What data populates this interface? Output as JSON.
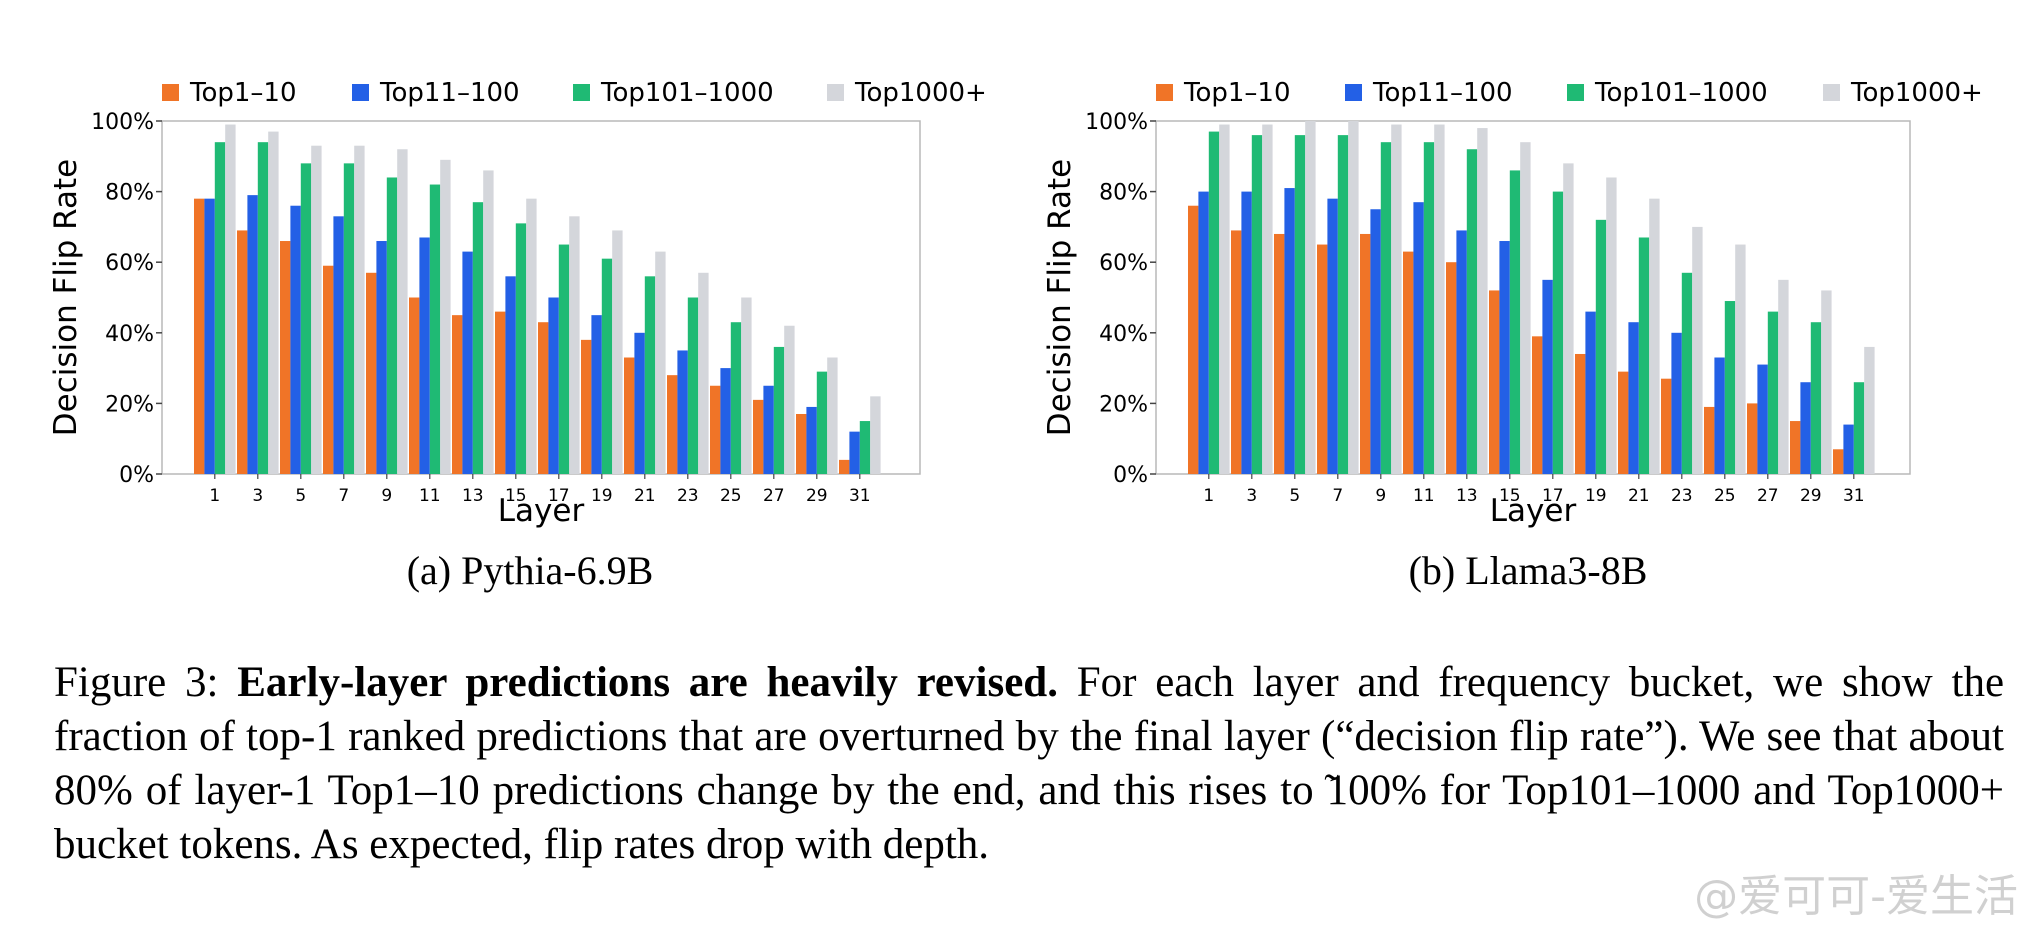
{
  "colors": {
    "top1_10": "#f07427",
    "top11_100": "#2360e6",
    "top101_1000": "#1fba74",
    "top1000plus": "#d4d6db"
  },
  "chart_data": [
    {
      "type": "bar",
      "subcaption": "(a) Pythia-6.9B",
      "xlabel": "Layer",
      "ylabel": "Decision Flip Rate",
      "ylim": [
        0,
        100
      ],
      "yticks": [
        "0%",
        "20%",
        "40%",
        "60%",
        "80%",
        "100%"
      ],
      "categories": [
        "1",
        "3",
        "5",
        "7",
        "9",
        "11",
        "13",
        "15",
        "17",
        "19",
        "21",
        "23",
        "25",
        "27",
        "29",
        "31"
      ],
      "legend": "top",
      "series": [
        {
          "name": "Top1–10",
          "values": [
            78,
            69,
            66,
            59,
            57,
            50,
            45,
            46,
            43,
            38,
            33,
            28,
            25,
            21,
            17,
            4
          ]
        },
        {
          "name": "Top11–100",
          "values": [
            78,
            79,
            76,
            73,
            66,
            67,
            63,
            56,
            50,
            45,
            40,
            35,
            30,
            25,
            19,
            12
          ]
        },
        {
          "name": "Top101–1000",
          "values": [
            94,
            94,
            88,
            88,
            84,
            82,
            77,
            71,
            65,
            61,
            56,
            50,
            43,
            36,
            29,
            15
          ]
        },
        {
          "name": "Top1000+",
          "values": [
            99,
            97,
            93,
            93,
            92,
            89,
            86,
            78,
            73,
            69,
            63,
            57,
            50,
            42,
            33,
            22
          ]
        }
      ]
    },
    {
      "type": "bar",
      "subcaption": "(b) Llama3-8B",
      "xlabel": "Layer",
      "ylabel": "Decision Flip Rate",
      "ylim": [
        0,
        100
      ],
      "yticks": [
        "0%",
        "20%",
        "40%",
        "60%",
        "80%",
        "100%"
      ],
      "categories": [
        "1",
        "3",
        "5",
        "7",
        "9",
        "11",
        "13",
        "15",
        "17",
        "19",
        "21",
        "23",
        "25",
        "27",
        "29",
        "31"
      ],
      "legend": "top",
      "series": [
        {
          "name": "Top1–10",
          "values": [
            76,
            69,
            68,
            65,
            68,
            63,
            60,
            52,
            39,
            34,
            29,
            27,
            19,
            20,
            15,
            7
          ]
        },
        {
          "name": "Top11–100",
          "values": [
            80,
            80,
            81,
            78,
            75,
            77,
            69,
            66,
            55,
            46,
            43,
            40,
            33,
            31,
            26,
            14
          ]
        },
        {
          "name": "Top101–1000",
          "values": [
            97,
            96,
            96,
            96,
            94,
            94,
            92,
            86,
            80,
            72,
            67,
            57,
            49,
            46,
            43,
            26
          ]
        },
        {
          "name": "Top1000+",
          "values": [
            99,
            99,
            100,
            100,
            99,
            99,
            98,
            94,
            88,
            84,
            78,
            70,
            65,
            55,
            52,
            36
          ]
        }
      ]
    }
  ],
  "caption": {
    "label": "Figure 3:",
    "bold": "Early-layer predictions are heavily revised.",
    "text": "For each layer and frequency bucket, we show the fraction of top-1 ranked predictions that are overturned by the final layer (“decision flip rate”). We see that about 80% of layer-1 Top1–10 predictions change by the end, and this rises to ̃100% for Top101–1000 and Top1000+ bucket tokens. As expected, flip rates drop with depth."
  },
  "watermark": "@爱可可-爱生活"
}
